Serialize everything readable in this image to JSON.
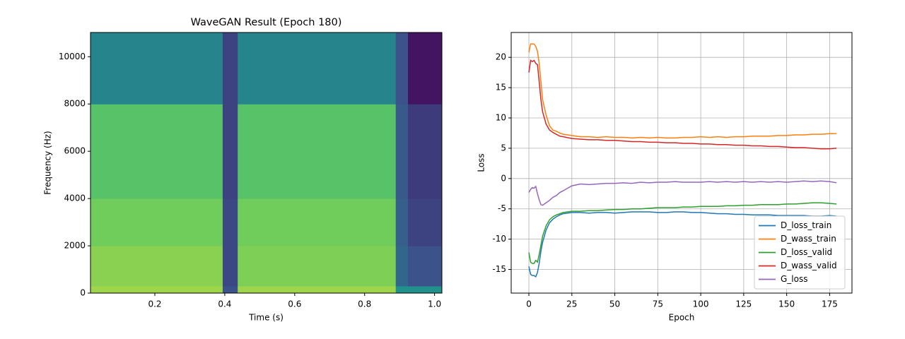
{
  "chart_data": [
    {
      "type": "spectrogram",
      "title": "WaveGAN Result (Epoch 180)",
      "xlabel": "Time (s)",
      "ylabel": "Frequency (Hz)",
      "colormap": "viridis",
      "zlim": [
        0,
        1
      ],
      "x_edges": [
        0.016,
        0.394,
        0.437,
        0.889,
        0.924,
        1.021
      ],
      "y_edges": [
        0,
        300,
        2000,
        4000,
        8000,
        11025
      ],
      "z": [
        [
          0.85,
          0.25,
          0.85,
          0.5,
          0.5
        ],
        [
          0.82,
          0.22,
          0.8,
          0.33,
          0.25
        ],
        [
          0.78,
          0.22,
          0.78,
          0.3,
          0.2
        ],
        [
          0.72,
          0.2,
          0.72,
          0.28,
          0.18
        ],
        [
          0.45,
          0.2,
          0.45,
          0.25,
          0.06
        ]
      ],
      "xlim": [
        0.016,
        1.021
      ],
      "ylim": [
        0,
        11025
      ],
      "xticks": [
        0.2,
        0.4,
        0.6,
        0.8,
        {
          "value": 1,
          "label": "1.0"
        }
      ],
      "yticks": [
        0,
        2000,
        4000,
        6000,
        8000,
        10000
      ]
    },
    {
      "type": "line",
      "xlabel": "Epoch",
      "ylabel": "Loss",
      "grid": true,
      "legend": "lower right",
      "x": [
        0,
        1,
        2,
        3,
        4,
        5,
        6,
        7,
        8,
        10,
        12,
        14,
        16,
        18,
        20,
        25,
        30,
        35,
        40,
        45,
        50,
        55,
        60,
        65,
        70,
        75,
        80,
        85,
        90,
        95,
        100,
        105,
        110,
        115,
        120,
        125,
        130,
        135,
        140,
        145,
        150,
        155,
        160,
        165,
        170,
        175,
        179
      ],
      "series": [
        {
          "name": "D_loss_train",
          "color": "#1f77b4",
          "values": [
            -14.5,
            -15.8,
            -16,
            -16,
            -16.2,
            -15.5,
            -14,
            -12,
            -10.5,
            -8.5,
            -7.3,
            -6.7,
            -6.3,
            -6,
            -5.8,
            -5.6,
            -5.6,
            -5.7,
            -5.6,
            -5.6,
            -5.7,
            -5.6,
            -5.5,
            -5.5,
            -5.5,
            -5.6,
            -5.6,
            -5.5,
            -5.5,
            -5.6,
            -5.6,
            -5.7,
            -5.8,
            -5.8,
            -5.9,
            -5.9,
            -6.0,
            -6.0,
            -6.0,
            -6.1,
            -6.1,
            -6.1,
            -6.1,
            -6.2,
            -6.2,
            -6.1,
            -6.2
          ]
        },
        {
          "name": "D_wass_train",
          "color": "#ff7f0e",
          "values": [
            20.8,
            22.2,
            22.2,
            22.2,
            21.8,
            21,
            19,
            16,
            13,
            10.5,
            8.7,
            8,
            7.8,
            7.5,
            7.3,
            7.1,
            6.9,
            6.9,
            6.8,
            6.9,
            6.8,
            6.8,
            6.7,
            6.8,
            6.7,
            6.8,
            6.7,
            6.7,
            6.8,
            6.8,
            6.9,
            6.8,
            6.9,
            6.8,
            6.9,
            6.9,
            7.0,
            7.0,
            7.0,
            7.1,
            7.1,
            7.2,
            7.2,
            7.3,
            7.3,
            7.4,
            7.4
          ]
        },
        {
          "name": "D_loss_valid",
          "color": "#2ca02c",
          "values": [
            -12.2,
            -13.8,
            -14,
            -14,
            -13.5,
            -13.8,
            -12.5,
            -11,
            -9.5,
            -7.8,
            -6.8,
            -6.3,
            -6,
            -5.8,
            -5.6,
            -5.4,
            -5.4,
            -5.3,
            -5.3,
            -5.2,
            -5.1,
            -5.1,
            -5.0,
            -5.0,
            -4.9,
            -4.8,
            -4.8,
            -4.8,
            -4.7,
            -4.7,
            -4.6,
            -4.6,
            -4.6,
            -4.5,
            -4.5,
            -4.4,
            -4.4,
            -4.3,
            -4.3,
            -4.3,
            -4.2,
            -4.2,
            -4.1,
            -4.0,
            -4.0,
            -4.1,
            -4.2
          ]
        },
        {
          "name": "D_wass_valid",
          "color": "#d62728",
          "values": [
            17.5,
            19.5,
            19.3,
            19.5,
            19,
            18.8,
            16,
            13,
            11,
            9,
            8,
            7.6,
            7.3,
            7.0,
            6.9,
            6.6,
            6.5,
            6.4,
            6.4,
            6.3,
            6.3,
            6.2,
            6.1,
            6.1,
            6.0,
            6.0,
            5.9,
            5.9,
            5.8,
            5.8,
            5.7,
            5.7,
            5.6,
            5.6,
            5.5,
            5.5,
            5.4,
            5.4,
            5.3,
            5.3,
            5.2,
            5.1,
            5.1,
            5.0,
            4.9,
            4.9,
            5.0
          ]
        },
        {
          "name": "G_loss",
          "color": "#9467bd",
          "values": [
            -2.3,
            -1.8,
            -1.5,
            -1.6,
            -1.3,
            -2.5,
            -3.5,
            -4.3,
            -4.4,
            -4,
            -3.6,
            -3.1,
            -2.8,
            -2.3,
            -2,
            -1.2,
            -0.9,
            -1.0,
            -0.9,
            -0.8,
            -0.8,
            -0.7,
            -0.8,
            -0.6,
            -0.7,
            -0.6,
            -0.6,
            -0.5,
            -0.6,
            -0.6,
            -0.6,
            -0.5,
            -0.6,
            -0.5,
            -0.6,
            -0.5,
            -0.6,
            -0.5,
            -0.6,
            -0.5,
            -0.6,
            -0.5,
            -0.4,
            -0.5,
            -0.4,
            -0.5,
            -0.7
          ]
        }
      ],
      "xlim": [
        -10.3,
        188
      ],
      "ylim": [
        -18.9,
        24.1
      ],
      "xticks": [
        0,
        25,
        50,
        75,
        100,
        125,
        150,
        175
      ],
      "yticks": [
        -15,
        -10,
        -5,
        0,
        5,
        10,
        15,
        20
      ]
    }
  ]
}
